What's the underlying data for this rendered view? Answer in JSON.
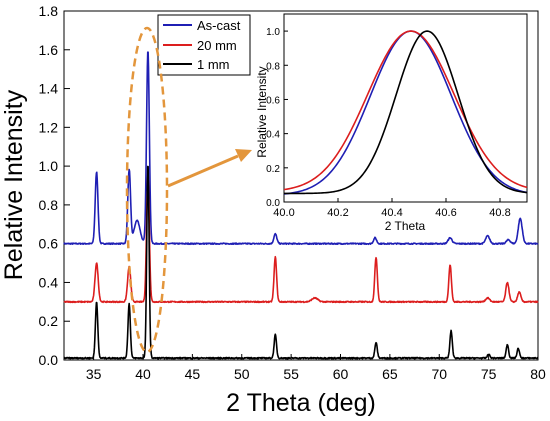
{
  "chart_data": [
    {
      "type": "line",
      "title": "",
      "xlabel": "2 Theta (deg)",
      "ylabel": "Relative Intensity",
      "xlim": [
        32,
        80
      ],
      "ylim": [
        0,
        1.8
      ],
      "x_ticks": [
        35,
        40,
        45,
        50,
        55,
        60,
        65,
        70,
        75,
        80
      ],
      "y_ticks": [
        0.0,
        0.2,
        0.4,
        0.6,
        0.8,
        1.0,
        1.2,
        1.4,
        1.6,
        1.8
      ],
      "legend_position": "top-right",
      "series": [
        {
          "name": "As-cast",
          "color": "#1f1fb4",
          "baseline": 0.6,
          "peaks": [
            [
              35.3,
              0.37,
              0.14
            ],
            [
              38.6,
              0.38,
              0.14
            ],
            [
              39.4,
              0.12,
              0.3
            ],
            [
              40.5,
              1.0,
              0.14
            ],
            [
              53.4,
              0.05,
              0.15
            ],
            [
              63.5,
              0.03,
              0.15
            ],
            [
              71.1,
              0.03,
              0.2
            ],
            [
              74.9,
              0.04,
              0.2
            ],
            [
              77.0,
              0.02,
              0.2
            ],
            [
              78.2,
              0.13,
              0.2
            ]
          ]
        },
        {
          "name": "20 mm",
          "color": "#dc1e1e",
          "baseline": 0.3,
          "peaks": [
            [
              35.3,
              0.2,
              0.16
            ],
            [
              38.6,
              0.18,
              0.16
            ],
            [
              40.5,
              0.65,
              0.14
            ],
            [
              53.4,
              0.23,
              0.13
            ],
            [
              57.4,
              0.02,
              0.3
            ],
            [
              63.6,
              0.23,
              0.13
            ],
            [
              71.1,
              0.19,
              0.13
            ],
            [
              74.9,
              0.02,
              0.2
            ],
            [
              76.9,
              0.1,
              0.16
            ],
            [
              78.1,
              0.05,
              0.16
            ]
          ]
        },
        {
          "name": "1 mm",
          "color": "#000000",
          "baseline": 0.01,
          "peaks": [
            [
              35.3,
              0.29,
              0.12
            ],
            [
              38.6,
              0.28,
              0.12
            ],
            [
              40.5,
              1.0,
              0.12
            ],
            [
              53.4,
              0.12,
              0.12
            ],
            [
              63.6,
              0.08,
              0.12
            ],
            [
              71.2,
              0.14,
              0.12
            ],
            [
              75.0,
              0.02,
              0.12
            ],
            [
              76.9,
              0.07,
              0.12
            ],
            [
              78.0,
              0.05,
              0.12
            ]
          ]
        }
      ]
    },
    {
      "type": "line",
      "title": "",
      "xlabel": "2 Theta",
      "ylabel": "Relative Intensity",
      "xlim": [
        40.0,
        40.9
      ],
      "ylim": [
        0.0,
        1.1
      ],
      "x_ticks": [
        40.0,
        40.2,
        40.4,
        40.6,
        40.8
      ],
      "y_ticks": [
        0.0,
        0.2,
        0.4,
        0.6,
        0.8,
        1.0
      ],
      "series": [
        {
          "name": "As-cast",
          "color": "#1f1fb4",
          "center": 40.47,
          "sigma": 0.15,
          "baseline": 0.04
        },
        {
          "name": "20 mm",
          "color": "#dc1e1e",
          "center": 40.47,
          "sigma": 0.16,
          "baseline": 0.06
        },
        {
          "name": "1 mm",
          "color": "#000000",
          "center": 40.53,
          "sigma": 0.115,
          "baseline": 0.05
        }
      ]
    }
  ]
}
